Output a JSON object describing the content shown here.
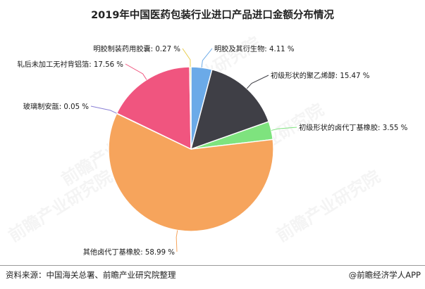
{
  "title": "2019年中国医药包装行业进口产品进口金额分布情况",
  "source": "资料来源：中国海关总署、前瞻产业研究院整理",
  "brand": "@前瞻经济学人APP",
  "watermark_text": "前瞻产业研究院",
  "chart_data": {
    "type": "pie",
    "title": "2019年中国医药包装行业进口产品进口金额分布情况",
    "start": "12 o'clock",
    "direction": "clockwise",
    "series": [
      {
        "name": "",
        "slices": [
          {
            "label": "明胶及其衍生物",
            "value": 4.11,
            "display": "明胶及其衍生物: 4.11 %",
            "color": "#6baae8"
          },
          {
            "label": "初级形状的聚乙烯醇",
            "value": 15.47,
            "display": "初级形状的聚乙烯醇: 15.47 %",
            "color": "#3f3f46"
          },
          {
            "label": "初级形状的卤代丁基橡胶",
            "value": 3.55,
            "display": "初级形状的卤代丁基橡胶: 3.55 %",
            "color": "#7ee37e"
          },
          {
            "label": "其他卤代丁基橡胶",
            "value": 58.99,
            "display": "其他卤代丁基橡胶: 58.99 %",
            "color": "#f6a45c"
          },
          {
            "label": "玻璃制安瓿",
            "value": 0.05,
            "display": "玻璃制安瓿: 0.05 %",
            "color": "#8a80d6"
          },
          {
            "label": "轧后未加工无衬背铝箔",
            "value": 17.56,
            "display": "轧后未加工无衬背铝箔: 17.56 %",
            "color": "#f0557f"
          },
          {
            "label": "明胶制装药用胶囊",
            "value": 0.27,
            "display": "明胶制装药用胶囊: 0.27 %",
            "color": "#e8cc4c"
          }
        ]
      }
    ]
  }
}
